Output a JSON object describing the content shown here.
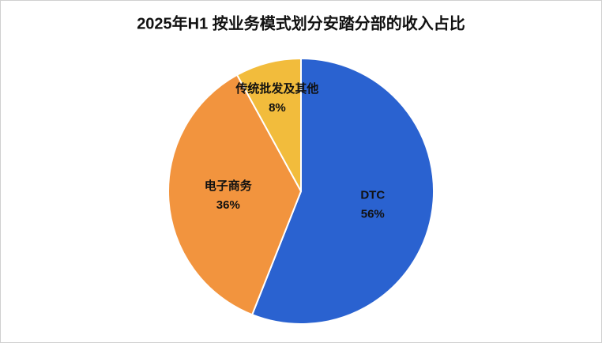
{
  "chart_data": {
    "type": "pie",
    "title": "2025年H1 按业务模式划分安踏分部的收入占比",
    "categories": [
      "DTC",
      "电子商务",
      "传统批发及其他"
    ],
    "values": [
      56,
      36,
      8
    ],
    "value_labels": [
      "56%",
      "36%",
      "8%"
    ],
    "colors": [
      "#2a62d0",
      "#f2943e",
      "#f2bc3c"
    ]
  }
}
